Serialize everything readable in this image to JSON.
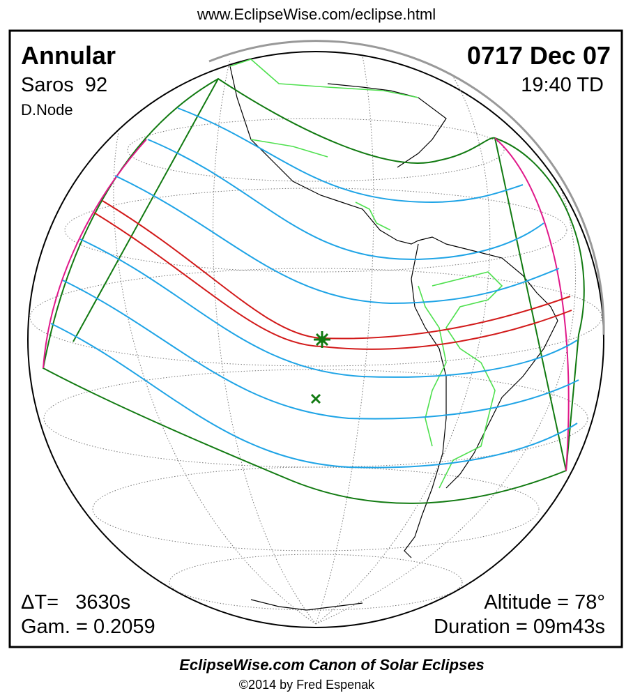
{
  "header": {
    "url": "www.EclipseWise.com/eclipse.html"
  },
  "panel": {
    "eclipse_type": "Annular",
    "saros": "Saros  92",
    "node": "D.Node",
    "date": "0717 Dec 07",
    "time": "19:40 TD",
    "delta_t": "ΔT=   3630s",
    "gamma": "Gam. = 0.2059",
    "altitude": "Altitude = 78°",
    "duration": "Duration = 09m43s"
  },
  "footer": {
    "title": "EclipseWise.com Canon of Solar Eclipses",
    "credit": "©2014 by Fred Espenak"
  }
}
